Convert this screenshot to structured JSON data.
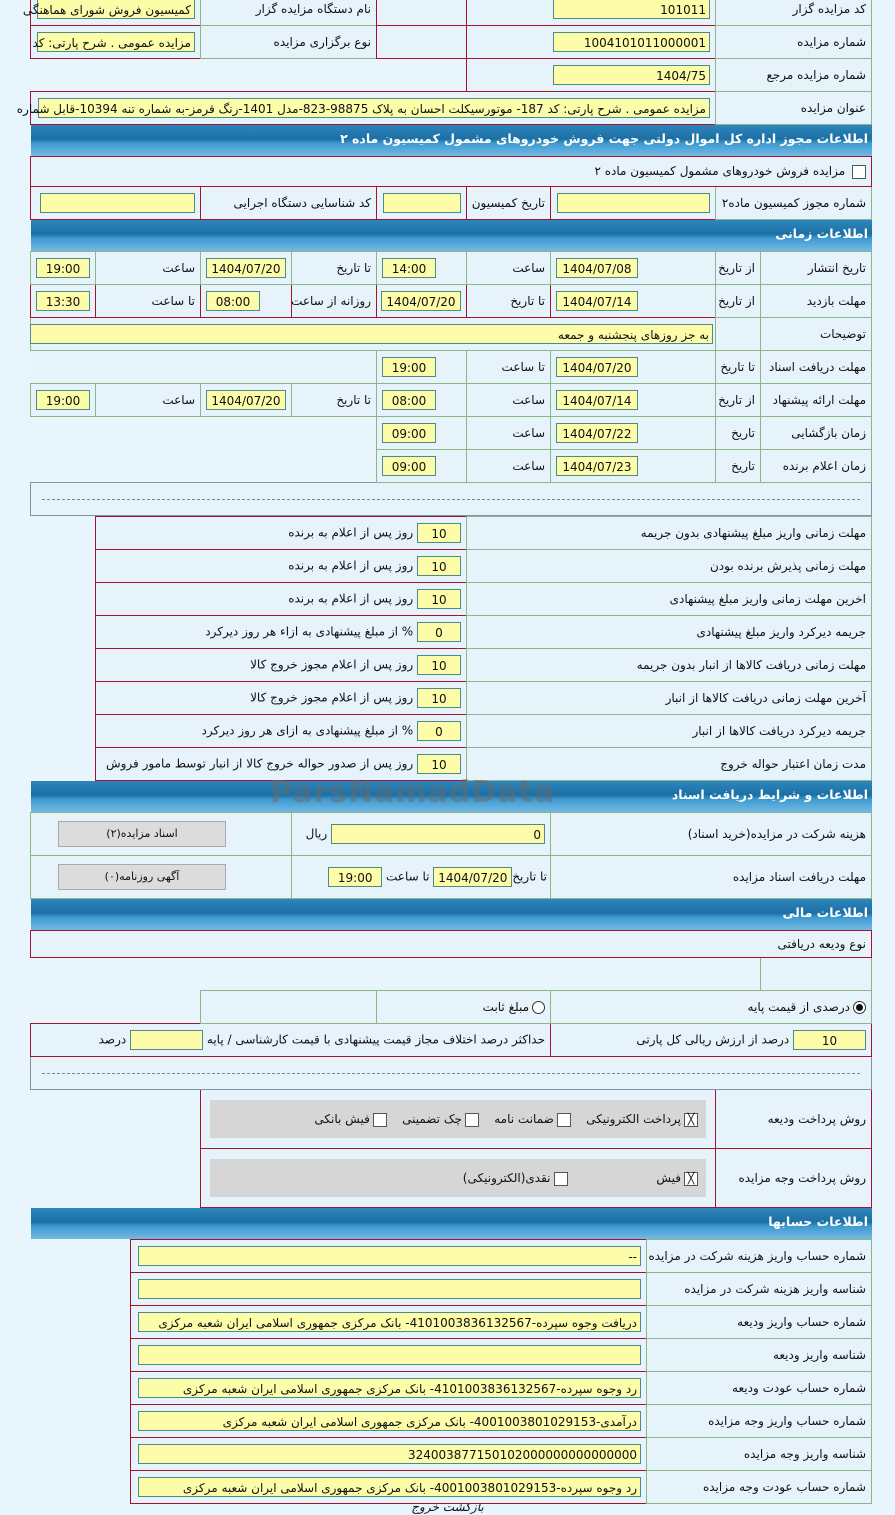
{
  "general": {
    "auctioneer_code_label": "کد مزایده گزار",
    "auctioneer_code": "101011",
    "auctioneer_name_label": "نام دستگاه مزایده گزار",
    "auctioneer_name": "کمیسیون فروش شورای هماهنگی",
    "auction_number_label": "شماره مزایده",
    "auction_number": "1004101011000001",
    "auction_type_label": "نوع برگزاری مزایده",
    "auction_type": "مزایده عمومی . شرح پارتی: کد",
    "reference_number_label": "شماره مزایده مرجع",
    "reference_number": "1404/75",
    "title_label": "عنوان مزایده",
    "title": "مزایده عمومی . شرح پارتی: کد 187- موتورسیکلت احسان به پلاک 98875-823-مدل 1401-رنگ قرمز-به شماره تنه 10394-قابل شماره"
  },
  "commission": {
    "header": "اطلاعات مجوز اداره کل اموال دولتی جهت فروش خودروهای مشمول کمیسیون ماده ۲",
    "checkbox_label": "مزایده فروش خودروهای مشمول کمیسیون ماده ۲",
    "checked": false,
    "permit_label": "شماره مجوز کمیسیون ماده۲",
    "permit": "",
    "date_label": "تاریخ کمیسیون",
    "date": "",
    "exec_code_label": "کد شناسایی دستگاه اجرایی",
    "exec_code": ""
  },
  "timing": {
    "header": "اطلاعات زمانی",
    "rows": [
      {
        "label": "تاریخ انتشار",
        "l1": "از تاریخ",
        "v1": "1404/07/08",
        "l2": "ساعت",
        "v2": "14:00",
        "l3": "تا تاریخ",
        "v3": "1404/07/20",
        "l4": "ساعت",
        "v4": "19:00"
      },
      {
        "label": "مهلت بازدید",
        "l1": "از تاریخ",
        "v1": "1404/07/14",
        "l2": "تا تاریخ",
        "v2": "1404/07/20",
        "l3": "روزانه از ساعت",
        "v3": "08:00",
        "l4": "تا ساعت",
        "v4": "13:30"
      },
      {
        "label": "توضیحات",
        "v1": "به جز روزهای پنجشنبه و جمعه"
      },
      {
        "label": "مهلت دریافت اسناد",
        "l1": "تا تاریخ",
        "v1": "1404/07/20",
        "l2": "تا ساعت",
        "v2": "19:00"
      },
      {
        "label": "مهلت ارائه پیشنهاد",
        "l1": "از تاریخ",
        "v1": "1404/07/14",
        "l2": "ساعت",
        "v2": "08:00",
        "l3": "تا تاریخ",
        "v3": "1404/07/20",
        "l4": "ساعت",
        "v4": "19:00"
      },
      {
        "label": "زمان بازگشایی",
        "l1": "تاریخ",
        "v1": "1404/07/22",
        "l2": "ساعت",
        "v2": "09:00"
      },
      {
        "label": "زمان اعلام برنده",
        "l1": "تاریخ",
        "v1": "1404/07/23",
        "l2": "ساعت",
        "v2": "09:00"
      }
    ]
  },
  "deadlines": [
    {
      "label": "مهلت زمانی واریز مبلغ پیشنهادی بدون جریمه",
      "value": "10",
      "unit": "روز پس از اعلام به برنده"
    },
    {
      "label": "مهلت زمانی پذیرش برنده بودن",
      "value": "10",
      "unit": "روز پس از اعلام به برنده"
    },
    {
      "label": "اخرین مهلت زمانی واریز مبلغ پیشنهادی",
      "value": "10",
      "unit": "روز پس از اعلام به برنده"
    },
    {
      "label": "جریمه دیرکرد واریز مبلغ پیشنهادی",
      "value": "0",
      "unit": "% از مبلغ پیشنهادی به ازاء هر روز دیرکرد"
    },
    {
      "label": "مهلت زمانی دریافت کالاها از انبار بدون جریمه",
      "value": "10",
      "unit": "روز پس از اعلام مجوز خروج کالا"
    },
    {
      "label": "آخرین مهلت زمانی دریافت کالاها از انبار",
      "value": "10",
      "unit": "روز پس از اعلام مجوز خروج کالا"
    },
    {
      "label": "جریمه دیرکرد دریافت کالاها از انبار",
      "value": "0",
      "unit": "% از مبلغ پیشنهادی به ازای هر روز دیرکرد"
    },
    {
      "label": "مدت زمان اعتبار حواله خروج",
      "value": "10",
      "unit": "روز پس از صدور حواله خروج کالا از انبار توسط مامور فروش"
    }
  ],
  "documents": {
    "header": "اطلاعات و شرایط دریافت اسناد",
    "fee_label": "هزینه شرکت در مزایده(خرید اسناد)",
    "fee": "0",
    "fee_unit": "ریال",
    "docs_button": "اسناد مزایده(۲)",
    "deadline_label": "مهلت دریافت اسناد مزایده",
    "to_date_label": "تا تاریخ",
    "to_date": "1404/07/20",
    "to_time_label": "تا ساعت",
    "to_time": "19:00",
    "ads_button": "آگهی روزنامه(۰)"
  },
  "financial": {
    "header": "اطلاعات مالی",
    "deposit_type_label": "نوع ودیعه دریافتی",
    "radio_percent": "درصدی از قیمت پایه",
    "radio_fixed": "مبلغ ثابت",
    "selected": "percent",
    "percent_value": "10",
    "percent_label": "درصد از ارزش ریالی کل پارتی",
    "max_diff_label": "حداکثر درصد اختلاف مجاز قیمت پیشنهادی با قیمت کارشناسی / پایه",
    "max_diff": "",
    "max_diff_unit": "درصد",
    "deposit_method_label": "روش پرداخت ودیعه",
    "deposit_methods": [
      {
        "label": "پرداخت الکترونیکی",
        "checked": true
      },
      {
        "label": "ضمانت نامه",
        "checked": false
      },
      {
        "label": "چک تضمینی",
        "checked": false
      },
      {
        "label": "فیش بانکی",
        "checked": false
      }
    ],
    "payment_method_label": "روش پرداخت وجه مزایده",
    "payment_methods": [
      {
        "label": "فیش",
        "checked": true
      },
      {
        "label": "نقدی(الکترونیکی)",
        "checked": false
      }
    ]
  },
  "accounts": {
    "header": "اطلاعات حسابها",
    "rows": [
      {
        "label": "شماره حساب واریز هزینه شرکت در مزایده",
        "value": "--"
      },
      {
        "label": "شناسه واریز هزینه شرکت در مزایده",
        "value": ""
      },
      {
        "label": "شماره حساب واریز ودیعه",
        "value": "دریافت وجوه سپرده-4101003836132567- بانک مرکزی جمهوری اسلامی ایران شعبه مرکزی"
      },
      {
        "label": "شناسه واریز ودیعه",
        "value": ""
      },
      {
        "label": "شماره حساب عودت ودیعه",
        "value": "رد وجوه سپرده-4101003836132567- بانک مرکزی جمهوری اسلامی ایران شعبه مرکزی"
      },
      {
        "label": "شماره حساب واریز وجه مزایده",
        "value": "درآمدی-4001003801029153- بانک مرکزی جمهوری اسلامی ایران شعبه مرکزی"
      },
      {
        "label": "شناسه واریز وجه مزایده",
        "value": "324003877150102000000000000000"
      },
      {
        "label": "شماره حساب عودت وجه مزایده",
        "value": "رد وجوه سپرده-4001003801029153- بانک مرکزی جمهوری اسلامی ایران شعبه مرکزی"
      }
    ]
  },
  "footer": {
    "back_exit": "بازگشت خروج"
  },
  "watermark": "ParsNamadData"
}
